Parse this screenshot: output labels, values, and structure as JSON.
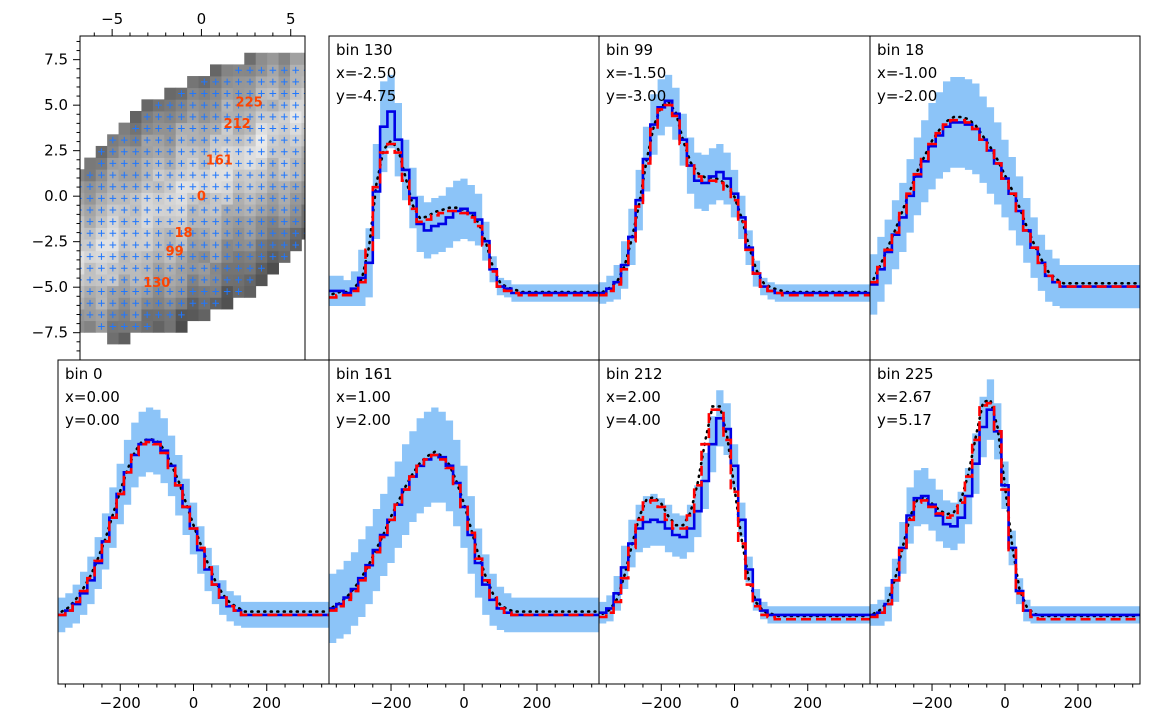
{
  "chart_data": [
    {
      "type": "heatmap",
      "id": "map",
      "xticks": [
        -5,
        0,
        5
      ],
      "yticks": [
        7.5,
        5.0,
        2.5,
        0.0,
        -2.5,
        -5.0,
        -7.5
      ],
      "xlim": [
        -6.8,
        5.8
      ],
      "ylim": [
        -9.0,
        8.8
      ],
      "marker_color": "#1f77ff",
      "label_color": "#ff4500",
      "labeled_bins": [
        {
          "label": "225",
          "x": 2.67,
          "y": 5.17
        },
        {
          "label": "212",
          "x": 2.0,
          "y": 4.0
        },
        {
          "label": "161",
          "x": 1.0,
          "y": 2.0
        },
        {
          "label": "0",
          "x": 0.0,
          "y": 0.0
        },
        {
          "label": "18",
          "x": -1.0,
          "y": -2.0
        },
        {
          "label": "99",
          "x": -1.5,
          "y": -3.0
        },
        {
          "label": "130",
          "x": -2.5,
          "y": -4.75
        }
      ]
    },
    {
      "type": "line",
      "id": "spectra",
      "xlim": [
        -370,
        370
      ],
      "xticks": [
        -200,
        0,
        200
      ],
      "x": [
        -360,
        -340,
        -320,
        -300,
        -280,
        -260,
        -240,
        -220,
        -200,
        -180,
        -160,
        -140,
        -120,
        -100,
        -80,
        -60,
        -40,
        -20,
        0,
        20,
        40,
        60,
        80,
        100,
        120,
        140,
        160,
        180,
        200,
        220,
        240,
        260,
        280,
        300,
        320,
        340,
        360
      ],
      "colors": {
        "data": "#0000e6",
        "model": "#ff0000",
        "dotted": "#000000",
        "band": "#8cc4f8"
      },
      "panels": [
        {
          "bin": "bin 130",
          "xlab": "x=-2.50",
          "ylab": "y=-4.75",
          "data": [
            0.02,
            0.02,
            0.01,
            0.03,
            0.08,
            0.15,
            0.48,
            0.78,
            0.85,
            0.72,
            0.58,
            0.45,
            0.33,
            0.3,
            0.32,
            0.33,
            0.36,
            0.39,
            0.4,
            0.38,
            0.35,
            0.25,
            0.12,
            0.04,
            0.03,
            0.01,
            0.01,
            0.01,
            0.01,
            0.01,
            0.01,
            0.01,
            0.01,
            0.01,
            0.01,
            0.01,
            0.01
          ],
          "model": [
            -0.01,
            0.0,
            0.0,
            0.02,
            0.06,
            0.21,
            0.5,
            0.66,
            0.7,
            0.66,
            0.53,
            0.4,
            0.34,
            0.35,
            0.37,
            0.38,
            0.39,
            0.39,
            0.38,
            0.36,
            0.32,
            0.23,
            0.11,
            0.04,
            0.02,
            0.01,
            0.0,
            0.0,
            0.0,
            0.0,
            0.0,
            0.0,
            0.0,
            0.0,
            0.0,
            0.0,
            0.0
          ],
          "band": [
            0.07,
            0.07,
            0.06,
            0.08,
            0.13,
            0.16,
            0.22,
            0.21,
            0.17,
            0.17,
            0.14,
            0.14,
            0.13,
            0.13,
            0.13,
            0.13,
            0.14,
            0.14,
            0.14,
            0.13,
            0.12,
            0.09,
            0.06,
            0.04,
            0.04,
            0.04,
            0.04,
            0.04,
            0.04,
            0.04,
            0.04,
            0.04,
            0.04,
            0.04,
            0.04,
            0.04,
            0.04
          ]
        },
        {
          "bin": "bin 99",
          "xlab": "x=-1.50",
          "ylab": "y=-3.00",
          "data": [
            0.01,
            0.03,
            0.06,
            0.14,
            0.27,
            0.44,
            0.63,
            0.79,
            0.87,
            0.9,
            0.84,
            0.72,
            0.6,
            0.53,
            0.52,
            0.55,
            0.57,
            0.54,
            0.47,
            0.36,
            0.22,
            0.1,
            0.04,
            0.02,
            0.01,
            0.01,
            0.01,
            0.01,
            0.01,
            0.01,
            0.01,
            0.01,
            0.01,
            0.01,
            0.01,
            0.01,
            0.01
          ],
          "model": [
            0.0,
            0.02,
            0.05,
            0.12,
            0.25,
            0.41,
            0.61,
            0.77,
            0.86,
            0.88,
            0.83,
            0.7,
            0.6,
            0.55,
            0.53,
            0.53,
            0.52,
            0.49,
            0.44,
            0.34,
            0.21,
            0.1,
            0.04,
            0.02,
            0.01,
            0.0,
            0.0,
            0.0,
            0.0,
            0.0,
            0.0,
            0.0,
            0.0,
            0.0,
            0.0,
            0.0,
            0.0
          ],
          "band": [
            0.05,
            0.06,
            0.08,
            0.11,
            0.13,
            0.14,
            0.15,
            0.14,
            0.13,
            0.12,
            0.12,
            0.12,
            0.13,
            0.13,
            0.13,
            0.13,
            0.13,
            0.12,
            0.11,
            0.1,
            0.08,
            0.06,
            0.04,
            0.04,
            0.04,
            0.04,
            0.04,
            0.04,
            0.04,
            0.04,
            0.04,
            0.04,
            0.04,
            0.04,
            0.04,
            0.04,
            0.04
          ]
        },
        {
          "bin": "bin 18",
          "xlab": "x=-1.00",
          "ylab": "y=-2.00",
          "data": [
            0.05,
            0.12,
            0.2,
            0.28,
            0.36,
            0.46,
            0.55,
            0.62,
            0.69,
            0.74,
            0.78,
            0.8,
            0.8,
            0.79,
            0.77,
            0.72,
            0.67,
            0.61,
            0.54,
            0.47,
            0.39,
            0.3,
            0.22,
            0.15,
            0.09,
            0.06,
            0.04,
            0.04,
            0.04,
            0.04,
            0.04,
            0.04,
            0.04,
            0.04,
            0.04,
            0.04,
            0.04
          ],
          "model": [
            0.06,
            0.13,
            0.21,
            0.29,
            0.38,
            0.47,
            0.56,
            0.63,
            0.7,
            0.75,
            0.79,
            0.81,
            0.81,
            0.8,
            0.77,
            0.72,
            0.67,
            0.61,
            0.54,
            0.47,
            0.39,
            0.3,
            0.22,
            0.15,
            0.09,
            0.06,
            0.04,
            0.04,
            0.04,
            0.04,
            0.04,
            0.04,
            0.04,
            0.04,
            0.04,
            0.04,
            0.04
          ],
          "band": [
            0.14,
            0.15,
            0.15,
            0.16,
            0.16,
            0.17,
            0.18,
            0.19,
            0.2,
            0.2,
            0.21,
            0.21,
            0.21,
            0.21,
            0.21,
            0.2,
            0.2,
            0.19,
            0.18,
            0.17,
            0.16,
            0.15,
            0.14,
            0.13,
            0.12,
            0.11,
            0.1,
            0.1,
            0.1,
            0.1,
            0.1,
            0.1,
            0.1,
            0.1,
            0.1,
            0.1,
            0.1
          ]
        },
        {
          "bin": "bin 0",
          "xlab": "x=0.00",
          "ylab": "y=0.00",
          "data": [
            0.02,
            0.04,
            0.07,
            0.12,
            0.18,
            0.26,
            0.36,
            0.47,
            0.58,
            0.68,
            0.76,
            0.81,
            0.83,
            0.82,
            0.78,
            0.71,
            0.62,
            0.52,
            0.42,
            0.32,
            0.23,
            0.16,
            0.1,
            0.06,
            0.04,
            0.02,
            0.02,
            0.02,
            0.02,
            0.02,
            0.02,
            0.02,
            0.02,
            0.02,
            0.02,
            0.02,
            0.02
          ],
          "model": [
            0.02,
            0.04,
            0.08,
            0.13,
            0.19,
            0.27,
            0.36,
            0.47,
            0.58,
            0.68,
            0.76,
            0.81,
            0.82,
            0.81,
            0.77,
            0.7,
            0.62,
            0.52,
            0.42,
            0.33,
            0.24,
            0.16,
            0.1,
            0.06,
            0.04,
            0.02,
            0.02,
            0.02,
            0.02,
            0.02,
            0.02,
            0.02,
            0.02,
            0.02,
            0.02,
            0.02,
            0.02
          ],
          "band": [
            0.08,
            0.08,
            0.09,
            0.1,
            0.11,
            0.12,
            0.13,
            0.14,
            0.14,
            0.15,
            0.15,
            0.15,
            0.15,
            0.15,
            0.15,
            0.14,
            0.14,
            0.13,
            0.12,
            0.11,
            0.1,
            0.09,
            0.08,
            0.07,
            0.07,
            0.06,
            0.06,
            0.06,
            0.06,
            0.06,
            0.06,
            0.06,
            0.06,
            0.06,
            0.06,
            0.06,
            0.06
          ]
        },
        {
          "bin": "bin 161",
          "xlab": "x=1.00",
          "ylab": "y=2.00",
          "data": [
            0.05,
            0.07,
            0.1,
            0.14,
            0.19,
            0.25,
            0.32,
            0.39,
            0.46,
            0.53,
            0.6,
            0.66,
            0.71,
            0.74,
            0.76,
            0.75,
            0.71,
            0.63,
            0.52,
            0.39,
            0.26,
            0.16,
            0.09,
            0.05,
            0.03,
            0.02,
            0.02,
            0.02,
            0.02,
            0.02,
            0.02,
            0.02,
            0.02,
            0.02,
            0.02,
            0.02,
            0.02
          ],
          "model": [
            0.04,
            0.06,
            0.09,
            0.13,
            0.18,
            0.24,
            0.31,
            0.38,
            0.46,
            0.53,
            0.6,
            0.66,
            0.71,
            0.74,
            0.76,
            0.74,
            0.7,
            0.62,
            0.52,
            0.4,
            0.28,
            0.18,
            0.1,
            0.05,
            0.03,
            0.02,
            0.02,
            0.02,
            0.02,
            0.02,
            0.02,
            0.02,
            0.02,
            0.02,
            0.02,
            0.02,
            0.02
          ],
          "band": [
            0.16,
            0.16,
            0.17,
            0.17,
            0.18,
            0.18,
            0.19,
            0.19,
            0.2,
            0.2,
            0.21,
            0.21,
            0.22,
            0.22,
            0.22,
            0.21,
            0.21,
            0.2,
            0.19,
            0.18,
            0.16,
            0.14,
            0.12,
            0.1,
            0.09,
            0.08,
            0.08,
            0.08,
            0.08,
            0.08,
            0.08,
            0.08,
            0.08,
            0.08,
            0.08,
            0.08,
            0.08
          ]
        },
        {
          "bin": "bin 212",
          "xlab": "x=2.00",
          "ylab": "y=4.00",
          "data": [
            0.03,
            0.05,
            0.12,
            0.24,
            0.35,
            0.42,
            0.45,
            0.46,
            0.45,
            0.42,
            0.39,
            0.38,
            0.42,
            0.5,
            0.64,
            0.81,
            0.93,
            0.88,
            0.71,
            0.46,
            0.23,
            0.09,
            0.04,
            0.02,
            0.02,
            0.02,
            0.02,
            0.02,
            0.02,
            0.02,
            0.02,
            0.02,
            0.02,
            0.02,
            0.02,
            0.02,
            0.02
          ],
          "model": [
            0.01,
            0.03,
            0.08,
            0.19,
            0.33,
            0.46,
            0.54,
            0.55,
            0.52,
            0.46,
            0.42,
            0.42,
            0.48,
            0.62,
            0.81,
            0.97,
            0.97,
            0.83,
            0.59,
            0.35,
            0.16,
            0.06,
            0.02,
            0.01,
            0.0,
            0.0,
            0.0,
            0.0,
            0.0,
            0.0,
            0.0,
            0.0,
            0.0,
            0.0,
            0.0,
            0.0,
            0.0
          ],
          "band": [
            0.05,
            0.06,
            0.08,
            0.1,
            0.11,
            0.11,
            0.12,
            0.12,
            0.11,
            0.11,
            0.1,
            0.1,
            0.11,
            0.12,
            0.13,
            0.13,
            0.13,
            0.12,
            0.1,
            0.08,
            0.06,
            0.05,
            0.04,
            0.04,
            0.04,
            0.04,
            0.04,
            0.04,
            0.04,
            0.04,
            0.04,
            0.04,
            0.04,
            0.04,
            0.04,
            0.04,
            0.04
          ]
        },
        {
          "bin": "bin 225",
          "xlab": "x=2.67",
          "ylab": "y=5.17",
          "data": [
            0.02,
            0.03,
            0.07,
            0.18,
            0.33,
            0.48,
            0.56,
            0.57,
            0.53,
            0.48,
            0.44,
            0.43,
            0.47,
            0.57,
            0.72,
            0.89,
            0.97,
            0.87,
            0.62,
            0.33,
            0.13,
            0.04,
            0.02,
            0.02,
            0.02,
            0.02,
            0.02,
            0.02,
            0.02,
            0.02,
            0.02,
            0.02,
            0.02,
            0.02,
            0.02,
            0.02,
            0.02
          ],
          "model": [
            0.01,
            0.03,
            0.07,
            0.18,
            0.32,
            0.46,
            0.54,
            0.55,
            0.52,
            0.49,
            0.47,
            0.48,
            0.54,
            0.66,
            0.83,
            0.99,
            1.0,
            0.87,
            0.6,
            0.32,
            0.12,
            0.04,
            0.01,
            0.0,
            0.0,
            0.0,
            0.0,
            0.0,
            0.0,
            0.0,
            0.0,
            0.0,
            0.0,
            0.0,
            0.0,
            0.0,
            0.0
          ],
          "band": [
            0.05,
            0.06,
            0.08,
            0.1,
            0.12,
            0.13,
            0.13,
            0.13,
            0.12,
            0.12,
            0.11,
            0.11,
            0.12,
            0.13,
            0.14,
            0.14,
            0.14,
            0.13,
            0.11,
            0.08,
            0.06,
            0.05,
            0.04,
            0.04,
            0.04,
            0.04,
            0.04,
            0.04,
            0.04,
            0.04,
            0.04,
            0.04,
            0.04,
            0.04,
            0.04,
            0.04,
            0.04
          ]
        }
      ]
    }
  ]
}
